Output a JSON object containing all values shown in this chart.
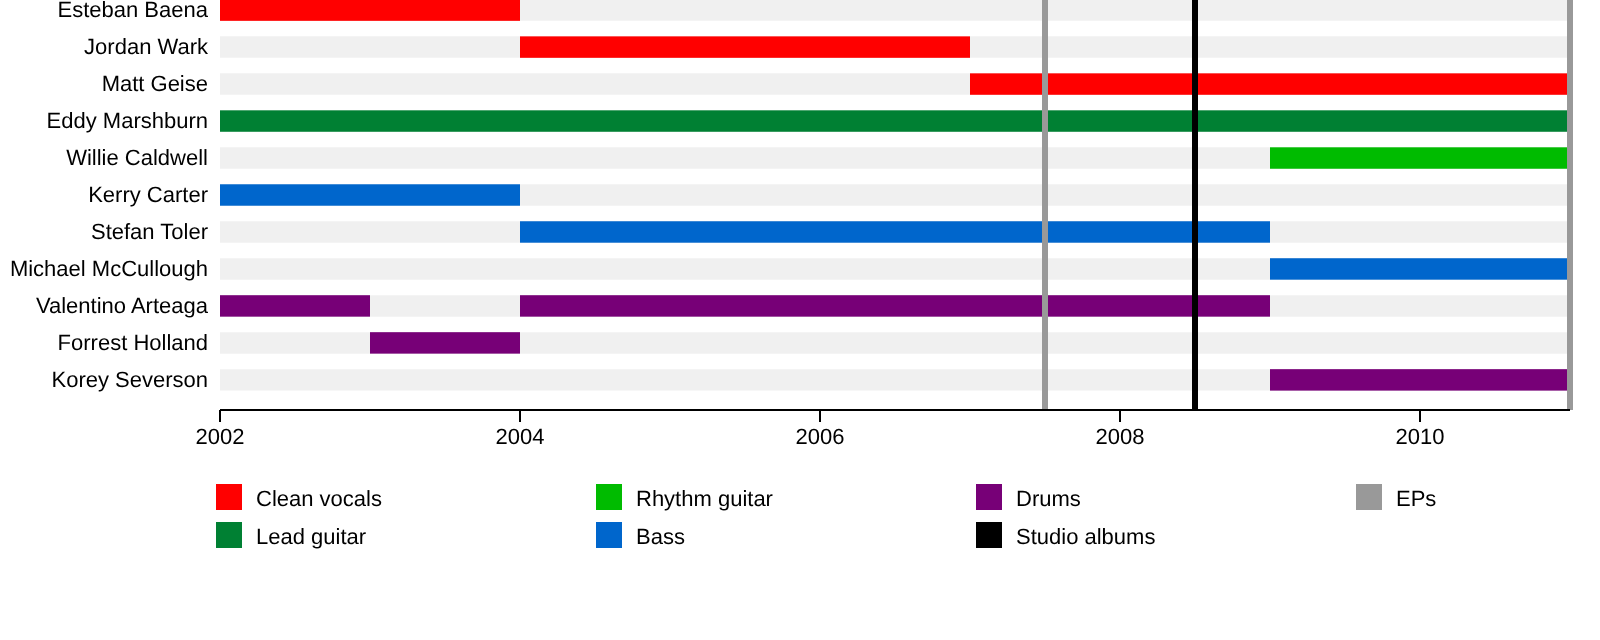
{
  "chart_data": {
    "type": "bar",
    "orientation": "horizontal",
    "categories": [
      "Esteban Baena",
      "Jordan Wark",
      "Matt Geise",
      "Eddy Marshburn",
      "Willie Caldwell",
      "Kerry Carter",
      "Stefan Toler",
      "Michael McCullough",
      "Valentino Arteaga",
      "Forrest Holland",
      "Korey Severson"
    ],
    "series": [
      {
        "name": "Clean vocals",
        "color": "#ff0000",
        "values": [
          2,
          3,
          4,
          null,
          null,
          null,
          null,
          null,
          null,
          null,
          null
        ],
        "base": [
          2002,
          2004,
          2007,
          null,
          null,
          null,
          null,
          null,
          null,
          null,
          null
        ]
      },
      {
        "name": "Lead guitar",
        "color": "#008033",
        "values": [
          null,
          null,
          null,
          9,
          null,
          null,
          null,
          null,
          null,
          null,
          null
        ],
        "base": [
          null,
          null,
          null,
          2002,
          null,
          null,
          null,
          null,
          null,
          null,
          null
        ]
      },
      {
        "name": "Rhythm guitar",
        "color": "#00bb00",
        "values": [
          null,
          null,
          null,
          null,
          2,
          null,
          null,
          null,
          null,
          null,
          null
        ],
        "base": [
          null,
          null,
          null,
          null,
          2009,
          null,
          null,
          null,
          null,
          null,
          null
        ]
      },
      {
        "name": "Bass",
        "color": "#0066cc",
        "values": [
          null,
          null,
          null,
          null,
          null,
          2,
          5,
          2,
          null,
          null,
          null
        ],
        "base": [
          null,
          null,
          null,
          null,
          null,
          2002,
          2004,
          2009,
          null,
          null,
          null
        ]
      },
      {
        "name": "Drums",
        "color": "#770077",
        "values": [
          null,
          null,
          null,
          null,
          null,
          null,
          null,
          null,
          1,
          1,
          2
        ],
        "base": [
          null,
          null,
          null,
          null,
          null,
          null,
          null,
          null,
          2002,
          2003,
          2009
        ]
      },
      {
        "color": "#770077",
        "values": [
          null,
          null,
          null,
          null,
          null,
          null,
          null,
          null,
          5,
          null,
          null
        ],
        "base": [
          null,
          null,
          null,
          null,
          null,
          null,
          null,
          null,
          2004,
          null,
          null
        ]
      }
    ],
    "xlim": [
      2002,
      2011
    ],
    "xticks": [
      2002,
      2004,
      2006,
      2008,
      2010
    ],
    "grid": "y",
    "legend": "bottom",
    "ref_lines": [
      {
        "axis": "x",
        "value": 2008.5,
        "label": "Studio albums",
        "color": "#000000"
      },
      {
        "axis": "x",
        "value": 2007.5,
        "label": "EPs",
        "color": "#999999"
      },
      {
        "axis": "x",
        "value": 2011,
        "label": null,
        "color": "#999999"
      }
    ]
  }
}
